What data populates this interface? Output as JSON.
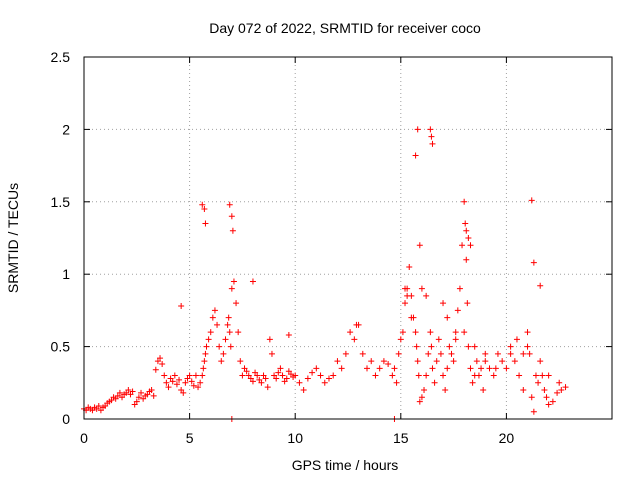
{
  "chart_data": {
    "type": "scatter",
    "title": "Day 072 of 2022, SRMTID for receiver coco",
    "xlabel": "GPS time / hours",
    "ylabel": "SRMTID / TECUs",
    "xlim": [
      0,
      25
    ],
    "ylim": [
      0,
      2.5
    ],
    "xticks": [
      0,
      5,
      10,
      15,
      20
    ],
    "xtick_labels": [
      "0",
      "5",
      "10",
      "15",
      "20"
    ],
    "yticks": [
      0,
      0.5,
      1,
      1.5,
      2,
      2.5
    ],
    "ytick_labels": [
      "0",
      "0.5",
      "1",
      "1.5",
      "2",
      "2.5"
    ],
    "grid": true,
    "marker": "+",
    "series": [
      {
        "name": "SRMTID",
        "color": "#ff0000",
        "x": [
          0.0,
          0.1,
          0.2,
          0.3,
          0.4,
          0.5,
          0.6,
          0.7,
          0.8,
          0.9,
          1.0,
          1.1,
          1.2,
          1.3,
          1.4,
          1.5,
          1.6,
          1.7,
          1.8,
          1.9,
          2.0,
          2.1,
          2.2,
          2.3,
          2.4,
          2.5,
          2.6,
          2.7,
          2.8,
          2.9,
          3.0,
          3.1,
          3.2,
          3.3,
          3.4,
          3.5,
          3.6,
          3.7,
          3.8,
          3.9,
          4.0,
          4.1,
          4.2,
          4.3,
          4.4,
          4.5,
          4.6,
          4.7,
          4.8,
          4.9,
          5.0,
          5.1,
          5.2,
          5.3,
          5.4,
          5.5,
          5.6,
          5.65,
          5.7,
          5.75,
          5.8,
          5.9,
          6.0,
          6.1,
          6.2,
          6.3,
          6.4,
          6.5,
          6.6,
          6.7,
          6.8,
          6.85,
          6.9,
          6.95,
          7.0,
          7.1,
          7.2,
          7.3,
          7.4,
          7.5,
          7.6,
          7.7,
          7.8,
          7.9,
          8.0,
          8.1,
          8.2,
          8.3,
          8.4,
          8.5,
          8.6,
          8.7,
          8.8,
          8.9,
          9.0,
          9.1,
          9.2,
          9.3,
          9.4,
          9.5,
          9.6,
          9.7,
          9.8,
          9.9,
          10.0,
          10.2,
          10.4,
          10.6,
          10.8,
          11.0,
          11.2,
          11.4,
          11.6,
          11.8,
          12.0,
          12.2,
          12.4,
          12.6,
          12.8,
          13.0,
          13.2,
          13.4,
          13.6,
          13.8,
          14.0,
          14.2,
          14.4,
          14.6,
          14.7,
          14.8,
          14.9,
          15.0,
          15.1,
          15.2,
          15.3,
          15.4,
          15.5,
          15.6,
          15.7,
          15.75,
          15.8,
          15.85,
          15.9,
          16.0,
          16.1,
          16.2,
          16.3,
          16.4,
          16.45,
          16.5,
          16.6,
          16.7,
          16.8,
          16.9,
          17.0,
          17.1,
          17.2,
          17.3,
          17.4,
          17.5,
          17.6,
          17.7,
          17.8,
          17.9,
          18.0,
          18.05,
          18.1,
          18.15,
          18.2,
          18.3,
          18.4,
          18.5,
          18.6,
          18.7,
          18.8,
          18.9,
          19.0,
          19.2,
          19.4,
          19.6,
          19.8,
          20.0,
          20.2,
          20.4,
          20.6,
          20.8,
          21.0,
          21.1,
          21.2,
          21.3,
          21.4,
          21.5,
          21.6,
          21.7,
          21.8,
          21.9,
          22.0,
          22.2,
          22.4,
          22.6,
          22.8,
          5.6,
          5.7,
          5.75,
          6.9,
          7.0,
          7.05,
          15.7,
          15.8,
          16.4,
          16.45,
          16.5,
          18.1,
          18.2,
          18.3,
          21.2,
          21.3,
          21.6,
          15.2,
          15.3,
          15.5,
          15.9,
          16.0,
          17.0,
          17.2,
          18.0,
          18.5,
          20.5,
          20.8,
          14.7,
          7.0,
          4.6,
          8.0,
          9.7,
          12.9,
          16.2,
          17.6,
          19.0,
          19.5,
          20.2,
          21.0,
          22.0,
          22.5
        ],
        "y": [
          0.07,
          0.06,
          0.08,
          0.07,
          0.06,
          0.08,
          0.07,
          0.09,
          0.06,
          0.08,
          0.09,
          0.11,
          0.12,
          0.13,
          0.15,
          0.14,
          0.16,
          0.18,
          0.15,
          0.17,
          0.18,
          0.2,
          0.17,
          0.19,
          0.1,
          0.12,
          0.15,
          0.18,
          0.14,
          0.16,
          0.17,
          0.19,
          0.2,
          0.16,
          0.34,
          0.4,
          0.42,
          0.38,
          0.3,
          0.25,
          0.22,
          0.28,
          0.26,
          0.3,
          0.24,
          0.27,
          0.2,
          0.18,
          0.25,
          0.28,
          0.3,
          0.26,
          0.23,
          0.3,
          0.22,
          0.25,
          0.3,
          0.35,
          0.4,
          0.45,
          0.5,
          0.55,
          0.6,
          0.7,
          0.75,
          0.65,
          0.5,
          0.4,
          0.45,
          0.55,
          0.65,
          0.7,
          0.6,
          0.5,
          0.9,
          0.95,
          0.8,
          0.6,
          0.4,
          0.3,
          0.35,
          0.33,
          0.3,
          0.28,
          0.26,
          0.32,
          0.3,
          0.27,
          0.25,
          0.3,
          0.28,
          0.22,
          0.55,
          0.45,
          0.3,
          0.28,
          0.32,
          0.35,
          0.3,
          0.26,
          0.28,
          0.33,
          0.31,
          0.29,
          0.3,
          0.25,
          0.2,
          0.28,
          0.32,
          0.35,
          0.3,
          0.25,
          0.28,
          0.3,
          0.4,
          0.35,
          0.45,
          0.6,
          0.55,
          0.65,
          0.45,
          0.35,
          0.4,
          0.3,
          0.35,
          0.4,
          0.38,
          0.3,
          0.35,
          0.25,
          0.45,
          0.55,
          0.6,
          0.8,
          0.9,
          1.05,
          0.85,
          0.7,
          0.6,
          0.5,
          0.4,
          0.3,
          0.12,
          0.15,
          0.2,
          0.3,
          0.45,
          0.6,
          0.5,
          0.35,
          0.25,
          0.4,
          0.55,
          0.45,
          0.3,
          0.2,
          0.35,
          0.5,
          0.45,
          0.4,
          0.6,
          0.75,
          0.9,
          1.2,
          1.5,
          1.35,
          1.1,
          0.8,
          0.5,
          0.35,
          0.25,
          0.3,
          0.4,
          0.3,
          0.35,
          0.2,
          0.4,
          0.35,
          0.3,
          0.45,
          0.4,
          0.35,
          0.5,
          0.4,
          0.3,
          0.2,
          0.6,
          0.45,
          0.15,
          0.05,
          0.3,
          0.25,
          0.4,
          0.3,
          0.2,
          0.15,
          0.1,
          0.12,
          0.18,
          0.2,
          0.22,
          1.48,
          1.45,
          1.35,
          1.48,
          1.4,
          1.3,
          1.82,
          2.0,
          2.0,
          1.95,
          1.9,
          1.3,
          1.25,
          1.2,
          1.51,
          1.08,
          0.92,
          0.9,
          0.85,
          0.7,
          1.2,
          0.9,
          0.8,
          0.7,
          0.6,
          0.5,
          0.55,
          0.45,
          0.0,
          0.0,
          0.78,
          0.95,
          0.58,
          0.65,
          0.85,
          0.55,
          0.45,
          0.35,
          0.45,
          0.5,
          0.3,
          0.25
        ]
      }
    ]
  }
}
